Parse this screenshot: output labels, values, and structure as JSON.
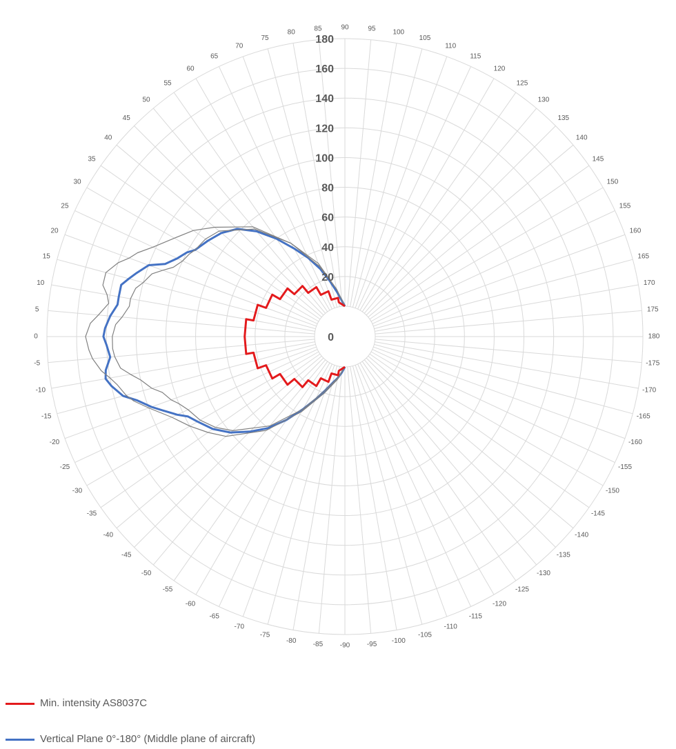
{
  "chart_data": {
    "type": "polar-line",
    "title": "",
    "angle_ticks": [
      -175,
      -170,
      -165,
      -160,
      -155,
      -150,
      -145,
      -140,
      -135,
      -130,
      -125,
      -120,
      -115,
      -110,
      -105,
      -100,
      -95,
      -90,
      -85,
      -80,
      -75,
      -70,
      -65,
      -60,
      -55,
      -50,
      -45,
      -40,
      -35,
      -30,
      -25,
      -20,
      -15,
      -10,
      -5,
      0,
      5,
      10,
      15,
      20,
      25,
      30,
      35,
      40,
      45,
      50,
      55,
      60,
      65,
      70,
      75,
      80,
      85,
      90,
      95,
      100,
      105,
      110,
      115,
      120,
      125,
      130,
      135,
      140,
      145,
      150,
      155,
      160,
      165,
      170,
      175,
      180
    ],
    "radial_ticks": [
      0,
      20,
      40,
      60,
      80,
      100,
      120,
      140,
      160,
      180
    ],
    "rlim": [
      0,
      180
    ],
    "grid": true,
    "legend": "bottom-left",
    "series": [
      {
        "name": "Min. intensity AS8037C",
        "color": "#e31a1c",
        "theta": [
          -90,
          -80,
          -80,
          -70,
          -70,
          -60,
          -60,
          -50,
          -50,
          -40,
          -40,
          -30,
          -30,
          -20,
          -20,
          -10,
          -10,
          0,
          0,
          10,
          10,
          20,
          20,
          30,
          30,
          40,
          40,
          50,
          50,
          60,
          60,
          70,
          70,
          80,
          80,
          90
        ],
        "r": [
          0,
          3,
          6,
          6,
          12,
          12,
          18,
          18,
          24,
          24,
          30,
          30,
          36,
          36,
          42,
          42,
          47,
          47,
          47,
          47,
          42,
          42,
          36,
          36,
          30,
          30,
          24,
          24,
          18,
          18,
          12,
          12,
          6,
          6,
          3,
          0
        ]
      },
      {
        "name": "Vertical Plane 0°-180° (Middle plane of aircraft)",
        "color": "#4472c4",
        "theta": [
          -90,
          -85,
          -80,
          -75,
          -70,
          -65,
          -60,
          -55,
          -50,
          -45,
          -40,
          -35,
          -30,
          -27,
          -25,
          -22,
          -20,
          -17,
          -15,
          -12,
          -10,
          -8,
          -5,
          -2,
          0,
          2,
          5,
          8,
          10,
          13,
          15,
          17,
          20,
          22,
          25,
          28,
          30,
          35,
          40,
          45,
          50,
          55,
          60,
          65,
          70,
          75,
          80,
          85,
          90
        ],
        "r": [
          0,
          4,
          8,
          12,
          18,
          26,
          36,
          48,
          60,
          70,
          80,
          88,
          94,
          98,
          104,
          112,
          118,
          126,
          134,
          140,
          143,
          142,
          138,
          140,
          142,
          141,
          138,
          134,
          134,
          134,
          130,
          126,
          120,
          110,
          104,
          100,
          96,
          92,
          88,
          82,
          72,
          60,
          48,
          38,
          28,
          18,
          10,
          4,
          0
        ]
      },
      {
        "name": "",
        "color": "#808080",
        "theta": [
          -90,
          -80,
          -70,
          -60,
          -50,
          -40,
          -35,
          -30,
          -25,
          -20,
          -17,
          -15,
          -12,
          -10,
          -8,
          -5,
          -3,
          0,
          3,
          5,
          8,
          10,
          12,
          15,
          18,
          20,
          22,
          25,
          30,
          35,
          40,
          50,
          60,
          70,
          80,
          90
        ],
        "r": [
          0,
          9,
          20,
          38,
          62,
          84,
          92,
          100,
          108,
          120,
          128,
          132,
          136,
          140,
          145,
          150,
          152,
          154,
          151,
          146,
          140,
          142,
          146,
          146,
          140,
          134,
          130,
          122,
          112,
          104,
          94,
          76,
          52,
          32,
          12,
          0
        ]
      },
      {
        "name": "",
        "color": "#808080",
        "theta": [
          -90,
          -80,
          -70,
          -60,
          -50,
          -40,
          -35,
          -30,
          -25,
          -22,
          -20,
          -17,
          -15,
          -12,
          -10,
          -8,
          -5,
          -3,
          0,
          3,
          5,
          8,
          10,
          13,
          15,
          18,
          20,
          22,
          25,
          28,
          30,
          35,
          40,
          50,
          60,
          70,
          80,
          90
        ],
        "r": [
          0,
          8,
          18,
          36,
          58,
          78,
          86,
          92,
          96,
          100,
          104,
          108,
          114,
          120,
          126,
          132,
          135,
          136,
          136,
          134,
          130,
          126,
          126,
          124,
          120,
          116,
          110,
          104,
          100,
          98,
          96,
          94,
          90,
          74,
          52,
          30,
          12,
          0
        ]
      }
    ]
  },
  "legend": {
    "red_label": "Min. intensity AS8037C",
    "blue_label": "Vertical Plane 0°-180° (Middle plane of aircraft)"
  }
}
